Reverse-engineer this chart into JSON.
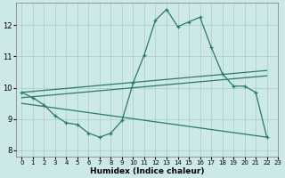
{
  "xlabel": "Humidex (Indice chaleur)",
  "bg_color": "#cce8e8",
  "grid_color": "#aacccc",
  "line_color": "#2a7a6a",
  "xlim": [
    -0.5,
    23
  ],
  "ylim": [
    7.8,
    12.7
  ],
  "xticks": [
    0,
    1,
    2,
    3,
    4,
    5,
    6,
    7,
    8,
    9,
    10,
    11,
    12,
    13,
    14,
    15,
    16,
    17,
    18,
    19,
    20,
    21,
    22,
    23
  ],
  "yticks": [
    8,
    9,
    10,
    11,
    12
  ],
  "main_x": [
    0,
    1,
    2,
    3,
    4,
    5,
    6,
    7,
    8,
    9,
    10,
    11,
    12,
    13,
    14,
    15,
    16,
    17,
    18,
    19,
    20,
    21,
    22
  ],
  "main_y": [
    9.85,
    9.68,
    9.45,
    9.1,
    8.88,
    8.82,
    8.55,
    8.42,
    8.55,
    8.95,
    10.15,
    11.05,
    12.15,
    12.5,
    11.95,
    12.1,
    12.25,
    11.3,
    10.45,
    10.05,
    10.05,
    9.85,
    8.42
  ],
  "line1_x": [
    0,
    22
  ],
  "line1_y": [
    9.85,
    10.55
  ],
  "line2_x": [
    0,
    22
  ],
  "line2_y": [
    9.68,
    10.38
  ],
  "line3_x": [
    0,
    22
  ],
  "line3_y": [
    9.5,
    8.42
  ],
  "tick_fontsize": 5,
  "xlabel_fontsize": 6.5
}
